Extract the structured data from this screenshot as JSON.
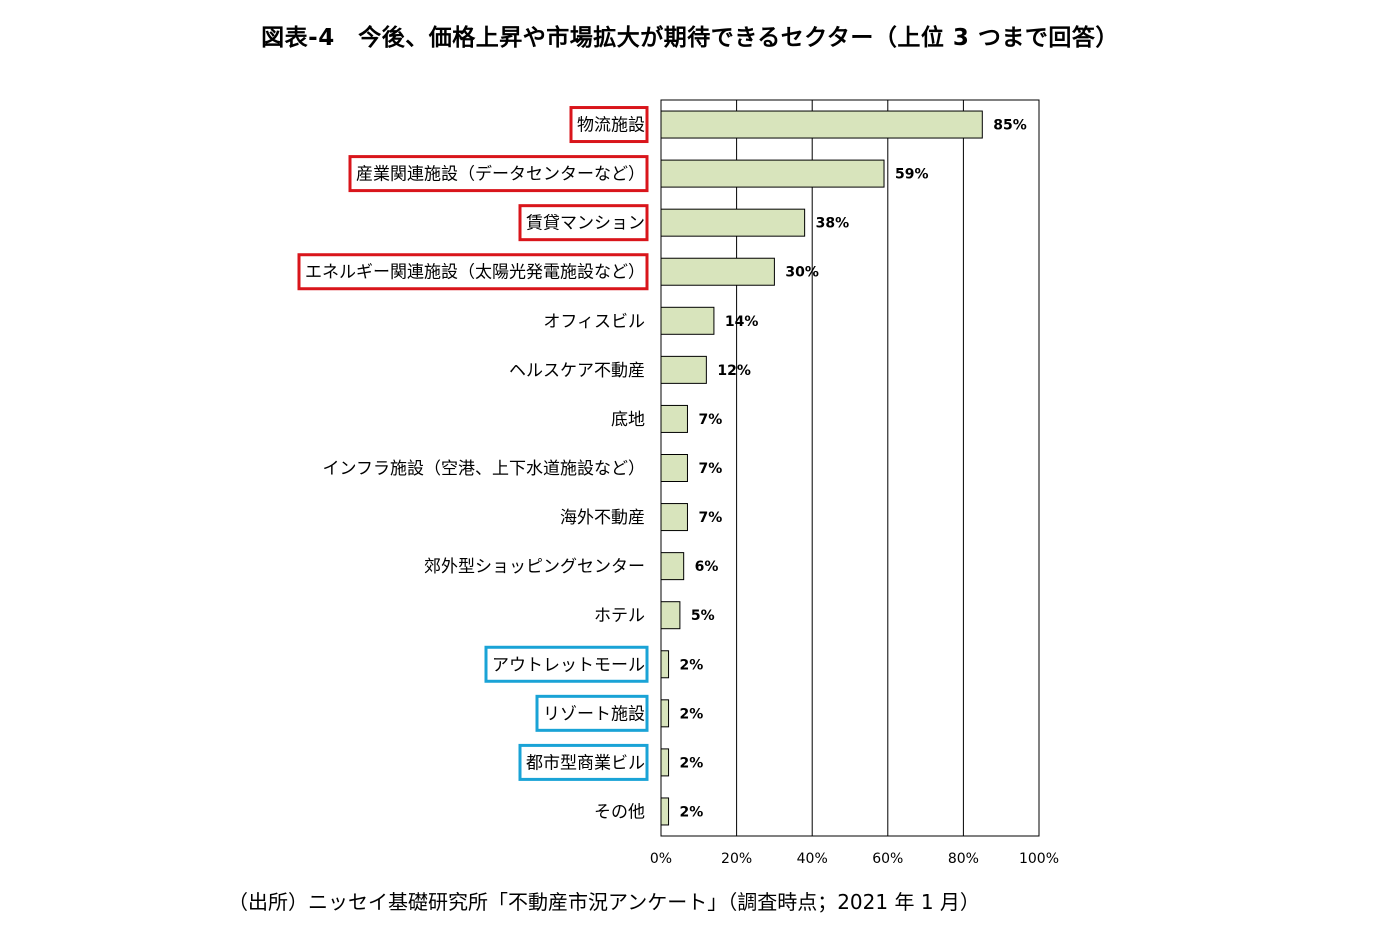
{
  "title": "図表-4　今後、価格上昇や市場拡大が期待できるセクター（上位 3 つまで回答）",
  "source": "（出所）ニッセイ基礎研究所「不動産市況アンケート」（調査時点；2021 年 1 月）",
  "colors": {
    "bar_fill": "#d8e4bc",
    "bar_stroke": "#000000",
    "highlight_red": "#d9151b",
    "highlight_blue": "#1aa3d6"
  },
  "chart_data": {
    "type": "bar",
    "orientation": "horizontal",
    "categories": [
      "物流施設",
      "産業関連施設（データセンターなど）",
      "賃貸マンション",
      "エネルギー関連施設（太陽光発電施設など）",
      "オフィスビル",
      "ヘルスケア不動産",
      "底地",
      "インフラ施設（空港、上下水道施設など）",
      "海外不動産",
      "郊外型ショッピングセンター",
      "ホテル",
      "アウトレットモール",
      "リゾート施設",
      "都市型商業ビル",
      "その他"
    ],
    "values": [
      85,
      59,
      38,
      30,
      14,
      12,
      7,
      7,
      7,
      6,
      5,
      2,
      2,
      2,
      2
    ],
    "value_labels": [
      "85%",
      "59%",
      "38%",
      "30%",
      "14%",
      "12%",
      "7%",
      "7%",
      "7%",
      "6%",
      "5%",
      "2%",
      "2%",
      "2%",
      "2%"
    ],
    "highlight": [
      "red",
      "red",
      "red",
      "red",
      "",
      "",
      "",
      "",
      "",
      "",
      "",
      "blue",
      "blue",
      "blue",
      ""
    ],
    "xlim": [
      0,
      100
    ],
    "xticks": [
      "0%",
      "20%",
      "40%",
      "60%",
      "80%",
      "100%"
    ],
    "grid": true,
    "xlabel": "",
    "ylabel": ""
  }
}
